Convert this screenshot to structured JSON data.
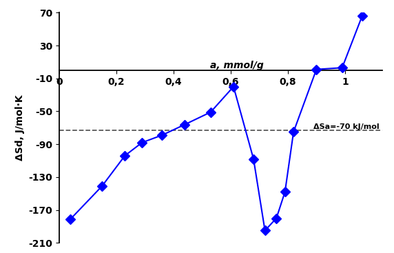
{
  "chart_data": {
    "type": "line",
    "x_label": "a, mmol/g",
    "y_label": "ΔSd, J/mol·K",
    "x": [
      0.04,
      0.15,
      0.23,
      0.29,
      0.36,
      0.44,
      0.53,
      0.61,
      0.68,
      0.72,
      0.76,
      0.79,
      0.82,
      0.9,
      0.99,
      1.06
    ],
    "series": [
      {
        "name": "ΔSd",
        "color": "#0000ff",
        "marker": "diamond",
        "line_style": "solid",
        "values": [
          -181,
          -141,
          -104,
          -88,
          -79,
          -66,
          -51,
          -20,
          -108,
          -195,
          -180,
          -148,
          -75,
          1,
          3,
          66
        ]
      }
    ],
    "reference_lines": [
      {
        "y": -73,
        "text": "ΔSa=-70 kJ/mol",
        "color": "#595959",
        "line_style": "dashed"
      }
    ],
    "xlim": [
      0,
      1.13
    ],
    "xticks": [
      0,
      {
        "value": 0.2,
        "label": "0,2"
      },
      {
        "value": 0.4,
        "label": "0,4"
      },
      {
        "value": 0.6,
        "label": "0,6"
      },
      {
        "value": 0.8,
        "label": "0,8"
      },
      1
    ],
    "ylim": [
      -210,
      70
    ],
    "yticks": [
      -210,
      -170,
      -130,
      -90,
      -50,
      -10,
      30,
      70
    ],
    "grid": false
  }
}
